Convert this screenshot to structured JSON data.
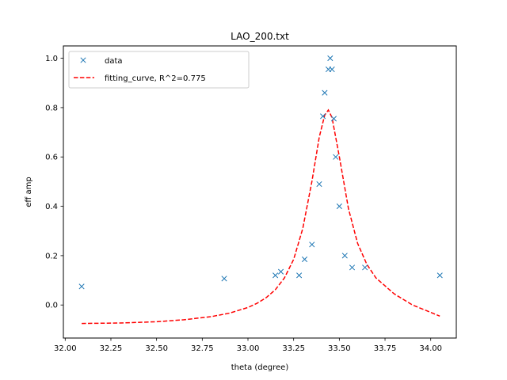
{
  "chart_data": {
    "type": "scatter",
    "title": "LAO_200.txt",
    "xlabel": "theta (degree)",
    "ylabel": "eff amp",
    "xlim": [
      31.99,
      34.14
    ],
    "ylim": [
      -0.134,
      1.05
    ],
    "xticks": [
      32.0,
      32.25,
      32.5,
      32.75,
      33.0,
      33.25,
      33.5,
      33.75,
      34.0
    ],
    "xtick_labels": [
      "32.00",
      "32.25",
      "32.50",
      "32.75",
      "33.00",
      "33.25",
      "33.50",
      "33.75",
      "34.00"
    ],
    "yticks": [
      0.0,
      0.2,
      0.4,
      0.6,
      0.8,
      1.0
    ],
    "ytick_labels": [
      "0.0",
      "0.2",
      "0.4",
      "0.6",
      "0.8",
      "1.0"
    ],
    "grid": false,
    "legend_position": "top-left",
    "series": [
      {
        "name": "data",
        "kind": "scatter",
        "marker": "x",
        "color": "#1f77b4",
        "points": [
          {
            "x": 32.09,
            "y": 0.075
          },
          {
            "x": 32.87,
            "y": 0.107
          },
          {
            "x": 33.15,
            "y": 0.12
          },
          {
            "x": 33.18,
            "y": 0.135
          },
          {
            "x": 33.28,
            "y": 0.12
          },
          {
            "x": 33.31,
            "y": 0.185
          },
          {
            "x": 33.35,
            "y": 0.245
          },
          {
            "x": 33.39,
            "y": 0.49
          },
          {
            "x": 33.41,
            "y": 0.765
          },
          {
            "x": 33.42,
            "y": 0.86
          },
          {
            "x": 33.44,
            "y": 0.955
          },
          {
            "x": 33.45,
            "y": 1.0
          },
          {
            "x": 33.46,
            "y": 0.955
          },
          {
            "x": 33.47,
            "y": 0.755
          },
          {
            "x": 33.48,
            "y": 0.6
          },
          {
            "x": 33.5,
            "y": 0.4
          },
          {
            "x": 33.53,
            "y": 0.2
          },
          {
            "x": 33.57,
            "y": 0.152
          },
          {
            "x": 33.64,
            "y": 0.152
          },
          {
            "x": 34.05,
            "y": 0.12
          }
        ]
      },
      {
        "name": "fitting_curve, R^2=0.775",
        "kind": "line",
        "style": "dashed",
        "color": "#ff0000",
        "points": [
          {
            "x": 32.09,
            "y": -0.075
          },
          {
            "x": 32.3,
            "y": -0.073
          },
          {
            "x": 32.5,
            "y": -0.068
          },
          {
            "x": 32.65,
            "y": -0.06
          },
          {
            "x": 32.8,
            "y": -0.047
          },
          {
            "x": 32.9,
            "y": -0.033
          },
          {
            "x": 33.0,
            "y": -0.01
          },
          {
            "x": 33.05,
            "y": 0.007
          },
          {
            "x": 33.1,
            "y": 0.03
          },
          {
            "x": 33.15,
            "y": 0.062
          },
          {
            "x": 33.2,
            "y": 0.11
          },
          {
            "x": 33.25,
            "y": 0.185
          },
          {
            "x": 33.3,
            "y": 0.31
          },
          {
            "x": 33.35,
            "y": 0.5
          },
          {
            "x": 33.39,
            "y": 0.68
          },
          {
            "x": 33.42,
            "y": 0.77
          },
          {
            "x": 33.44,
            "y": 0.79
          },
          {
            "x": 33.46,
            "y": 0.76
          },
          {
            "x": 33.5,
            "y": 0.6
          },
          {
            "x": 33.55,
            "y": 0.39
          },
          {
            "x": 33.6,
            "y": 0.25
          },
          {
            "x": 33.65,
            "y": 0.165
          },
          {
            "x": 33.7,
            "y": 0.11
          },
          {
            "x": 33.8,
            "y": 0.045
          },
          {
            "x": 33.9,
            "y": 0.0
          },
          {
            "x": 34.0,
            "y": -0.03
          },
          {
            "x": 34.05,
            "y": -0.045
          }
        ]
      }
    ]
  }
}
